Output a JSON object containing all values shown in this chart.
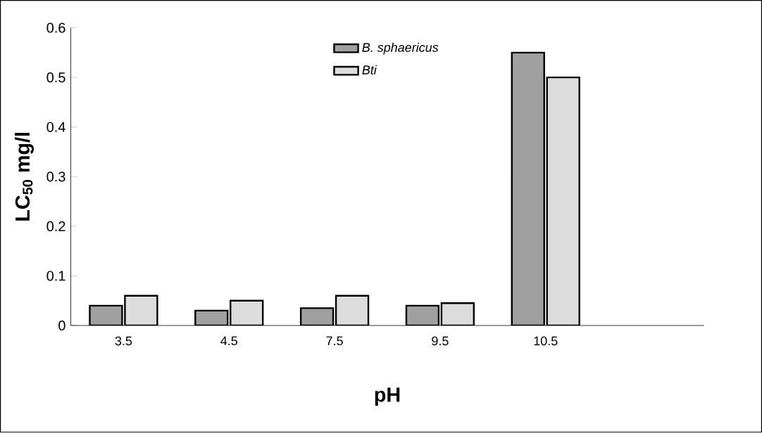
{
  "chart_data": {
    "type": "bar",
    "xlabel": "pH",
    "ylabel": "LC$_{50}$ mg/l",
    "categories": [
      "3.5",
      "4.5",
      "7.5",
      "9.5",
      "10.5",
      null
    ],
    "series": [
      {
        "name": "B. sphaericus",
        "color": "#a0a0a0",
        "values": [
          0.04,
          0.03,
          0.035,
          0.04,
          0.55,
          null
        ]
      },
      {
        "name": "Bti",
        "color": "#dcdcdc",
        "values": [
          0.06,
          0.05,
          0.06,
          0.045,
          0.5,
          null
        ]
      }
    ],
    "ylim": [
      0,
      0.6
    ],
    "yticks": [
      0,
      0.1,
      0.2,
      0.3,
      0.4,
      0.5,
      0.6
    ],
    "grid": false,
    "legend": "top"
  }
}
